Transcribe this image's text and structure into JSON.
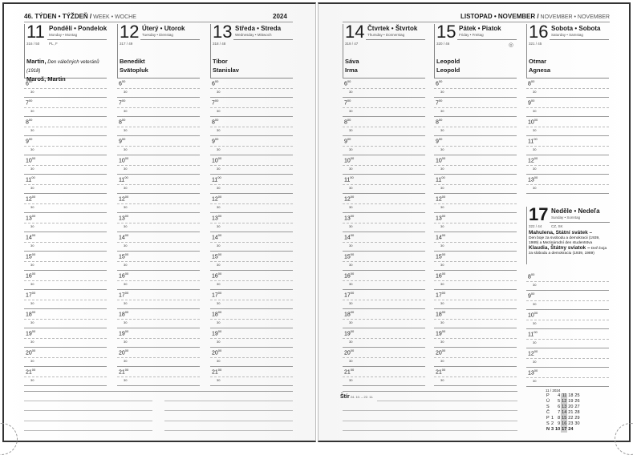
{
  "left_header": {
    "week": "46. TÝDEN • TÝŽDEŇ /",
    "week_other": " WEEK • WOCHE",
    "year": "2024"
  },
  "right_header": {
    "month": "LISTOPAD • NOVEMBER /",
    "month_other": " NOVEMBER • NOVEMBER"
  },
  "days": [
    {
      "num": "11",
      "name": "Pondělí • Pondelok",
      "sub": "Monday • Montag",
      "no": "316 / 50",
      "extra": "PL, F",
      "names1": "Martin,",
      "names_note": " Den válečných veteránů (1918)",
      "names2": "Maroš, Martin"
    },
    {
      "num": "12",
      "name": "Úterý • Utorok",
      "sub": "Tuesday • Dienstag",
      "no": "317 / 49",
      "extra": "",
      "names1": "Benedikt",
      "names_note": "",
      "names2": "Svätopluk"
    },
    {
      "num": "13",
      "name": "Středa • Streda",
      "sub": "Wednesday • Mittwoch",
      "no": "318 / 48",
      "extra": "",
      "names1": "Tibor",
      "names_note": "",
      "names2": "Stanislav"
    },
    {
      "num": "14",
      "name": "Čtvrtek • Štvrtok",
      "sub": "Thursday • Donnerstag",
      "no": "319 / 47",
      "extra": "",
      "names1": "Sáva",
      "names_note": "",
      "names2": "Irma"
    },
    {
      "num": "15",
      "name": "Pátek • Piatok",
      "sub": "Friday • Freitag",
      "no": "320 / 46",
      "extra": "",
      "names1": "Leopold",
      "names_note": "",
      "names2": "Leopold",
      "moon": "◎"
    },
    {
      "num": "16",
      "name": "Sobota • Sobota",
      "sub": "Saturday • Samstag",
      "no": "321 / 45",
      "extra": "",
      "names1": "Otmar",
      "names_note": "",
      "names2": "Agnesa"
    }
  ],
  "sunday": {
    "num": "17",
    "name": "Neděle • Nedeľa",
    "sub": "Sunday • Sonntag",
    "no": "322 / 44",
    "extra": "CZ, SK",
    "h1": "Mahulena, Státní svátek –",
    "t1": "Den boje za svobodu a demokracii (1939, 1989) a Mezinárodní den studentstva",
    "h2": "Klaudia, Štátny sviatok –",
    "t2": " Deň boja za slobodu a demokraciu (1939, 1989)"
  },
  "hours_weekday": [
    "6",
    "7",
    "8",
    "9",
    "10",
    "11",
    "12",
    "13",
    "14",
    "15",
    "16",
    "17",
    "18",
    "19",
    "20",
    "21"
  ],
  "hours_weekend": [
    "8",
    "9",
    "10",
    "11",
    "12",
    "13"
  ],
  "minute_sup": "00",
  "half": "30",
  "zodiac": {
    "sign": "Štír",
    "range": " 24. 10. – 22. 11."
  },
  "mini_calendar": {
    "title": "11 / 2024",
    "rows": [
      [
        "P",
        "",
        "4",
        "11",
        "18",
        "25"
      ],
      [
        "Ú",
        "",
        "5",
        "12",
        "19",
        "26"
      ],
      [
        "S",
        "",
        "6",
        "13",
        "20",
        "27"
      ],
      [
        "Č",
        "",
        "7",
        "14",
        "21",
        "28"
      ],
      [
        "P",
        "1",
        "8",
        "15",
        "22",
        "29"
      ],
      [
        "S",
        "2",
        "9",
        "16",
        "23",
        "30"
      ],
      [
        "N",
        "3",
        "10",
        "17",
        "24",
        ""
      ]
    ],
    "highlight_column": 3
  }
}
